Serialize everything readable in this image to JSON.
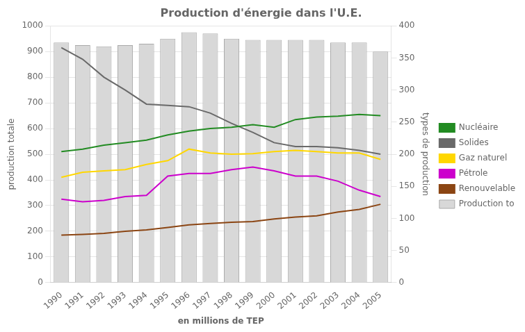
{
  "chart_data": {
    "type": "bar",
    "title": "Production d'énergie dans l'U.E.",
    "xlabel": "en millions de TEP",
    "ylabel": "production totale",
    "y2label": "types de production",
    "categories": [
      1990,
      1991,
      1992,
      1993,
      1994,
      1995,
      1996,
      1997,
      1998,
      1999,
      2000,
      2001,
      2002,
      2003,
      2004,
      2005
    ],
    "series": [
      {
        "name": "Production to",
        "type": "bar",
        "color": "#d8d8d8",
        "values": [
          935,
          925,
          920,
          925,
          930,
          950,
          975,
          970,
          950,
          945,
          945,
          945,
          945,
          935,
          935,
          900
        ]
      },
      {
        "name": "Nucléaire",
        "type": "line",
        "color": "#228B22",
        "values": [
          510,
          520,
          535,
          545,
          555,
          575,
          590,
          600,
          605,
          615,
          605,
          635,
          645,
          648,
          655,
          650
        ]
      },
      {
        "name": "Solides",
        "type": "line",
        "color": "#696969",
        "values": [
          915,
          870,
          800,
          750,
          695,
          690,
          685,
          660,
          620,
          585,
          545,
          530,
          530,
          525,
          515,
          500
        ]
      },
      {
        "name": "Gaz naturel",
        "type": "line",
        "color": "#FFD700",
        "values": [
          410,
          430,
          435,
          440,
          460,
          475,
          520,
          505,
          500,
          502,
          510,
          515,
          510,
          505,
          505,
          480
        ]
      },
      {
        "name": "Pétrole",
        "type": "line",
        "color": "#CC00CC",
        "values": [
          325,
          315,
          320,
          335,
          340,
          415,
          425,
          425,
          440,
          450,
          435,
          415,
          415,
          395,
          360,
          335
        ]
      },
      {
        "name": "Renouvelable",
        "type": "line",
        "color": "#8B4513",
        "values": [
          185,
          188,
          192,
          200,
          205,
          215,
          225,
          230,
          235,
          238,
          248,
          255,
          260,
          275,
          285,
          305
        ]
      }
    ],
    "ylim": [
      0,
      1000
    ],
    "yticks": [
      0,
      100,
      200,
      300,
      400,
      500,
      600,
      700,
      800,
      900,
      1000
    ],
    "y2lim": [
      0,
      400
    ],
    "y2ticks": [
      0,
      50,
      100,
      150,
      200,
      250,
      300,
      350,
      400
    ],
    "grid": true,
    "legend": "right"
  }
}
